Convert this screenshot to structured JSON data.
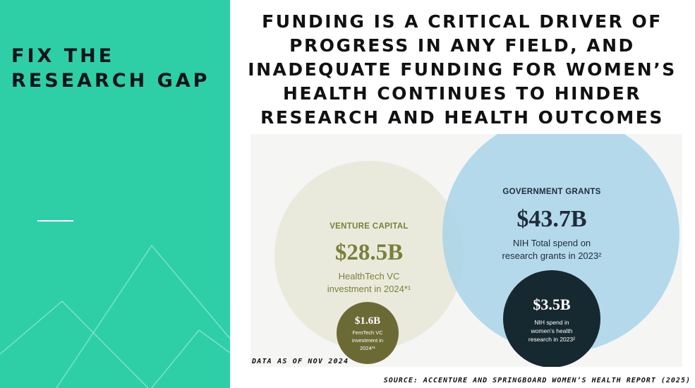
{
  "side_panel": {
    "title": "FIX THE\nRESEARCH GAP",
    "color": "#2ecfa7"
  },
  "headline": "FUNDING IS A CRITICAL DRIVER OF\nPROGRESS IN ANY FIELD, AND\nINADEQUATE FUNDING FOR WOMEN’S\nHEALTH CONTINUES TO HINDER\nRESEARCH AND HEALTH OUTCOMES",
  "diagram": {
    "venture_capital": {
      "label": "VENTURE CAPITAL",
      "amount": "$28.5B",
      "line1": "HealthTech VC",
      "line2": "investment in 2024*¹",
      "color": "#e9e9da",
      "text_color": "#7a7f3b"
    },
    "femtech": {
      "amount": "$1.6B",
      "line1": "FemTech VC",
      "line2": "investment in",
      "line3": "2024*¹",
      "color": "#6b6a35"
    },
    "government_grants": {
      "label": "GOVERNMENT GRANTS",
      "amount": "$43.7B",
      "line1": "NIH Total spend on",
      "line2": "research grants in 2023²",
      "color": "#a8d3e9",
      "text_color": "#1d2e39"
    },
    "womens_health": {
      "amount": "$3.5B",
      "line1": "NIH spend in",
      "line2": "women’s health",
      "line3": "research in 2023²",
      "color": "#162830"
    }
  },
  "data_note": "DATA AS OF NOV 2024",
  "source_note": "SOURCE: ACCENTURE AND SPRINGBOARD WOMEN’S HEALTH REPORT (2025)"
}
